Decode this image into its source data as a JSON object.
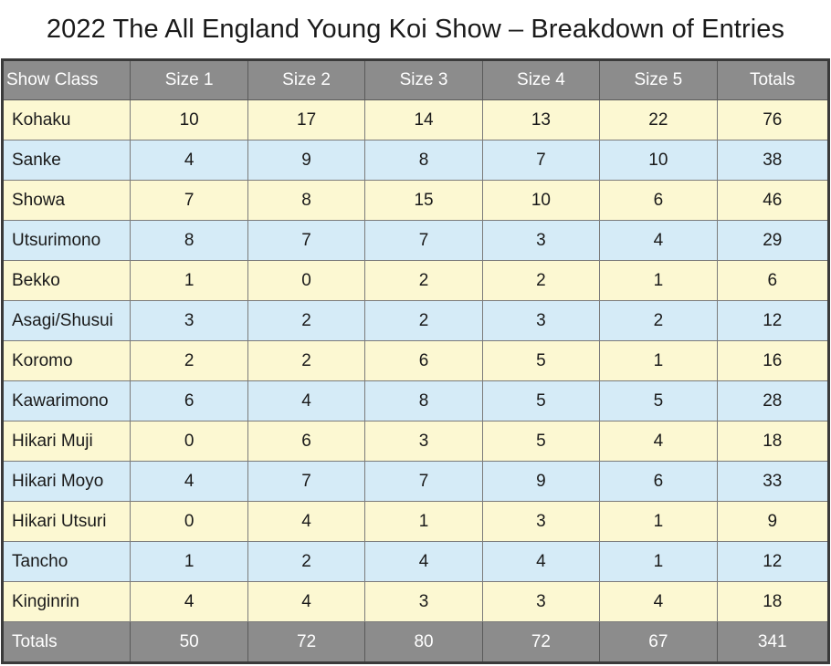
{
  "title": "2022 The All England Young Koi Show – Breakdown of Entries",
  "colors": {
    "header_bg": "#8c8c8c",
    "row_yellow": "#fcf8d2",
    "row_blue": "#d5ebf7",
    "border": "#3a3a3a"
  },
  "headers": [
    "Show Class",
    "Size 1",
    "Size 2",
    "Size 3",
    "Size 4",
    "Size 5",
    "Totals"
  ],
  "rows": [
    [
      "Kohaku",
      "10",
      "17",
      "14",
      "13",
      "22",
      "76"
    ],
    [
      "Sanke",
      "4",
      "9",
      "8",
      "7",
      "10",
      "38"
    ],
    [
      "Showa",
      "7",
      "8",
      "15",
      "10",
      "6",
      "46"
    ],
    [
      "Utsurimono",
      "8",
      "7",
      "7",
      "3",
      "4",
      "29"
    ],
    [
      "Bekko",
      "1",
      "0",
      "2",
      "2",
      "1",
      "6"
    ],
    [
      "Asagi/Shusui",
      "3",
      "2",
      "2",
      "3",
      "2",
      "12"
    ],
    [
      "Koromo",
      "2",
      "2",
      "6",
      "5",
      "1",
      "16"
    ],
    [
      "Kawarimono",
      "6",
      "4",
      "8",
      "5",
      "5",
      "28"
    ],
    [
      "Hikari Muji",
      "0",
      "6",
      "3",
      "5",
      "4",
      "18"
    ],
    [
      "Hikari Moyo",
      "4",
      "7",
      "7",
      "9",
      "6",
      "33"
    ],
    [
      "Hikari Utsuri",
      "0",
      "4",
      "1",
      "3",
      "1",
      "9"
    ],
    [
      "Tancho",
      "1",
      "2",
      "4",
      "4",
      "1",
      "12"
    ],
    [
      "Kinginrin",
      "4",
      "4",
      "3",
      "3",
      "4",
      "18"
    ]
  ],
  "totals": [
    "Totals",
    "50",
    "72",
    "80",
    "72",
    "67",
    "341"
  ]
}
